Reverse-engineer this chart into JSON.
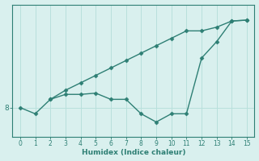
{
  "xlabel": "Humidex (Indice chaleur)",
  "line1_x": [
    0,
    1,
    2,
    3,
    4,
    5,
    6,
    7,
    8,
    9,
    10,
    11,
    12,
    13,
    14,
    15
  ],
  "line1_y": [
    8.0,
    7.85,
    8.2,
    8.32,
    8.32,
    8.35,
    8.2,
    8.2,
    7.85,
    7.65,
    7.85,
    7.85,
    9.2,
    9.6,
    10.1,
    10.12
  ],
  "line2_x": [
    2,
    3,
    4,
    5,
    6,
    7,
    8,
    9,
    10,
    11,
    12,
    13,
    14,
    15
  ],
  "line2_y": [
    8.2,
    8.42,
    8.6,
    8.78,
    8.96,
    9.14,
    9.32,
    9.5,
    9.68,
    9.86,
    9.86,
    9.95,
    10.1,
    10.12
  ],
  "line_color": "#2e7f74",
  "bg_color": "#d9f0ee",
  "grid_color": "#b8e0dc",
  "marker": "D",
  "markersize": 2.5,
  "linewidth": 1.0,
  "ytick_val": 8,
  "xlim": [
    -0.5,
    15.5
  ],
  "ylim": [
    7.3,
    10.5
  ]
}
